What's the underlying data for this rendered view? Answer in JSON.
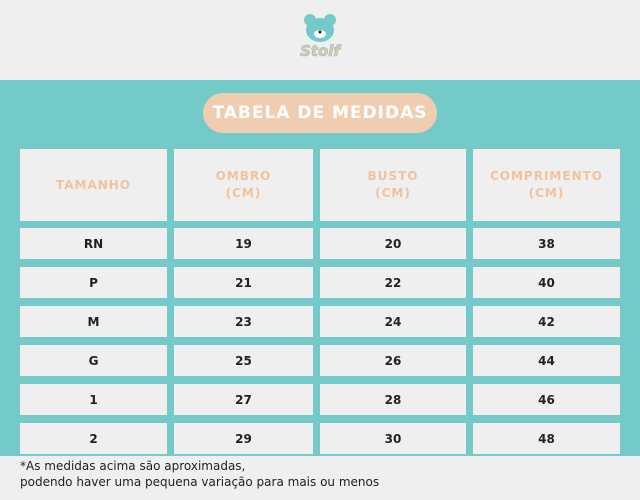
{
  "header": {
    "logo": "Stolf",
    "title": "TABELA DE MEDIDAS"
  },
  "table": {
    "columns": [
      [
        "TAMANHO"
      ],
      [
        "OMBRO",
        "(CM)"
      ],
      [
        "BUSTO",
        "(CM)"
      ],
      [
        "COMPRIMENTO",
        "(CM)"
      ]
    ],
    "rows": [
      [
        "RN",
        19,
        20,
        38
      ],
      [
        "P",
        21,
        22,
        40
      ],
      [
        "M",
        23,
        24,
        42
      ],
      [
        "G",
        25,
        26,
        44
      ],
      [
        "1",
        27,
        28,
        46
      ],
      [
        "2",
        29,
        30,
        48
      ]
    ]
  },
  "footnote": [
    "*As medidas acima são aproximadas,",
    "podendo haver uma pequena variação para mais ou menos"
  ]
}
